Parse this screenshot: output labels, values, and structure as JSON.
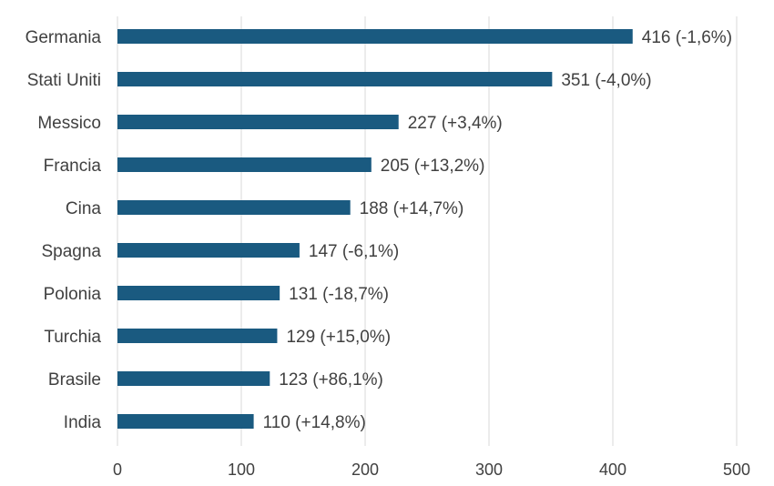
{
  "chart_data": {
    "type": "bar",
    "orientation": "horizontal",
    "title": "",
    "xlabel": "",
    "ylabel": "",
    "xlim": [
      0,
      500
    ],
    "xticks": [
      0,
      100,
      200,
      300,
      400,
      500
    ],
    "grid": true,
    "legend": "none",
    "bar_color": "#1a5a80",
    "categories": [
      "Germania",
      "Stati Uniti",
      "Messico",
      "Francia",
      "Cina",
      "Spagna",
      "Polonia",
      "Turchia",
      "Brasile",
      "India"
    ],
    "values": [
      416,
      351,
      227,
      205,
      188,
      147,
      131,
      129,
      123,
      110
    ],
    "labels": [
      "416 (-1,6%)",
      "351 (-4,0%)",
      "227 (+3,4%)",
      "205 (+13,2%)",
      "188 (+14,7%)",
      "147 (-6,1%)",
      "131 (-18,7%)",
      "129 (+15,0%)",
      "123 (+86,1%)",
      "110 (+14,8%)"
    ]
  }
}
